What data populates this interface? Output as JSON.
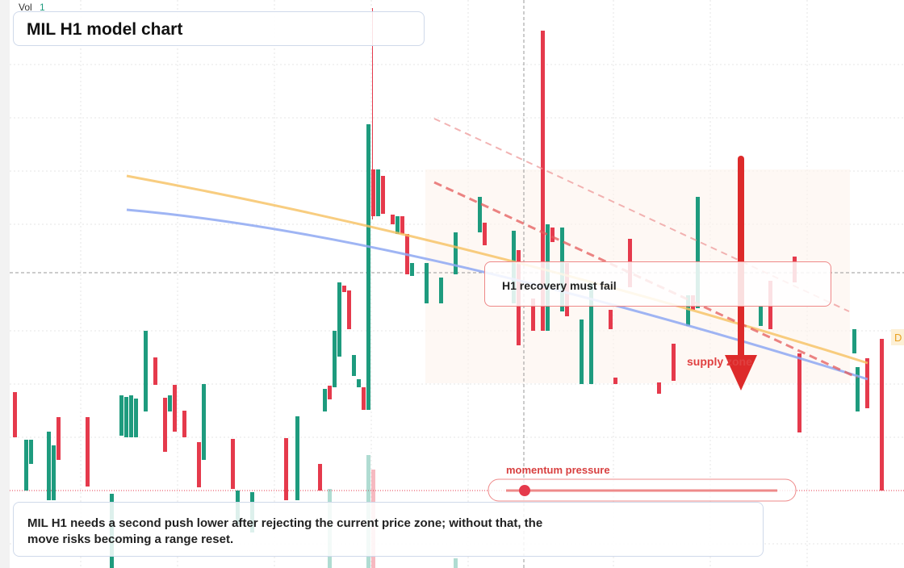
{
  "header": {
    "vol_label": "Vol",
    "vol_value": "1",
    "title": "MIL H1 model chart"
  },
  "annotations": {
    "callout": "H1 recovery must fail",
    "zone": "supply zone",
    "slider": "momentum pressure",
    "edge_tag": "D"
  },
  "caption": "MIL H1 needs a second push lower after rejecting the current price zone; without that, the move risks becoming a range reset."
}
